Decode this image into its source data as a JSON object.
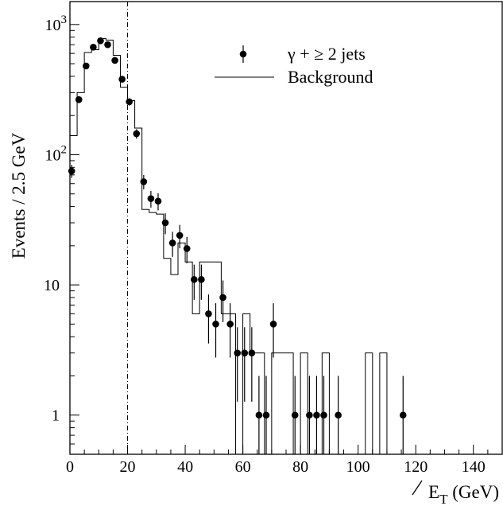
{
  "chart_data": {
    "type": "scatter",
    "xlabel_main": "E",
    "xlabel_sub": "T",
    "xlabel_unit": "(GeV)",
    "ylabel": "Events / 2.5 GeV",
    "xlim": [
      0,
      150
    ],
    "ylim": [
      0.5,
      1500
    ],
    "yscale": "log",
    "grid": false,
    "legend_position": "top-right",
    "x_ticks": [
      0,
      20,
      40,
      60,
      80,
      100,
      120,
      140
    ],
    "y_ticks": [
      {
        "value": 1,
        "label": "1"
      },
      {
        "value": 10,
        "label": "10"
      },
      {
        "value": 100,
        "label": "10",
        "sup": "2"
      },
      {
        "value": 1000,
        "label": "10",
        "sup": "3"
      }
    ],
    "cut_line_x": 20,
    "series": [
      {
        "name": "γ + ≥ 2 jets",
        "kind": "points",
        "x": [
          0.6,
          3.1,
          5.6,
          8.1,
          10.6,
          13.1,
          15.6,
          18.1,
          20.6,
          23.1,
          25.6,
          28.1,
          30.6,
          33.1,
          35.6,
          38.1,
          40.6,
          43.1,
          45.6,
          48.1,
          50.6,
          53.1,
          55.6,
          58.1,
          60.6,
          63.1,
          65.6,
          68.1,
          70.6,
          78.1,
          83.1,
          85.6,
          88.1,
          93.1,
          115.6
        ],
        "y": [
          75,
          265,
          480,
          670,
          750,
          700,
          530,
          380,
          255,
          145,
          62,
          46,
          44,
          30,
          21,
          24,
          19,
          11,
          11,
          6,
          5,
          8,
          5,
          3,
          3,
          3,
          1,
          1,
          5,
          1,
          1,
          1,
          1,
          1,
          1
        ]
      },
      {
        "name": "Background",
        "kind": "step",
        "edges": [
          0,
          2.5,
          5,
          7.5,
          10,
          12.5,
          15,
          17.5,
          20,
          22.5,
          25,
          27.5,
          30,
          32.5,
          35,
          37.5,
          40,
          42.5,
          45,
          47.5,
          50,
          52.5,
          55,
          57.5,
          60,
          62.5,
          65,
          67.5,
          70,
          72.5,
          75,
          77.5,
          80,
          82.5,
          85,
          87.5,
          90,
          92.5,
          95,
          97.5,
          100,
          102.5,
          105,
          107.5,
          110,
          112.5,
          115,
          117.5,
          120,
          150
        ],
        "values": [
          140,
          300,
          610,
          640,
          780,
          760,
          580,
          330,
          260,
          160,
          38,
          36,
          35,
          16,
          12,
          21,
          15,
          6,
          15,
          15,
          15,
          6,
          6,
          0,
          6,
          3,
          3,
          0,
          3,
          3,
          3,
          0,
          3,
          0,
          0,
          3,
          0,
          0,
          0,
          0,
          0,
          3,
          0,
          3,
          0,
          0,
          0,
          0,
          0
        ]
      }
    ]
  }
}
